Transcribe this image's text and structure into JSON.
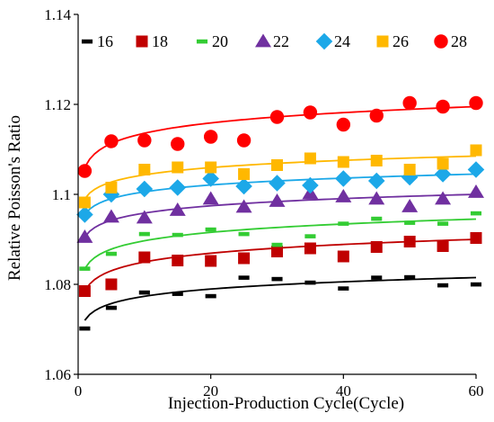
{
  "chart_data": {
    "type": "scatter",
    "title": "",
    "xlabel": "Injection-Production Cycle(Cycle)",
    "ylabel": "Relative Poisson's Ratio",
    "xlim": [
      0,
      60
    ],
    "ylim": [
      1.06,
      1.14
    ],
    "xticks": [
      0,
      20,
      40,
      60
    ],
    "yticks": [
      1.06,
      1.08,
      1.1,
      1.12,
      1.14
    ],
    "xtick_labels": [
      "0",
      "20",
      "40",
      "60"
    ],
    "ytick_labels": [
      "1.06",
      "1.08",
      "1.1",
      "1.12",
      "1.14"
    ],
    "grid": false,
    "legend_position": "top",
    "trendline": "logarithmic",
    "x": [
      1,
      5,
      10,
      15,
      20,
      25,
      30,
      35,
      40,
      45,
      50,
      55,
      60
    ],
    "series": [
      {
        "name": "16",
        "marker": "dash",
        "color": "#000000",
        "values": [
          1.0702,
          1.0748,
          1.0782,
          1.0779,
          1.0774,
          1.0815,
          1.0812,
          1.0804,
          1.0791,
          1.0815,
          1.0816,
          1.0798,
          1.08
        ],
        "fit": [
          1.072,
          1.0815
        ]
      },
      {
        "name": "18",
        "marker": "square",
        "color": "#c00000",
        "values": [
          1.0785,
          1.08,
          1.086,
          1.0853,
          1.0852,
          1.0858,
          1.0873,
          1.088,
          1.0862,
          1.0883,
          1.0895,
          1.0885,
          1.0903
        ],
        "fit": [
          1.0785,
          1.09
        ]
      },
      {
        "name": "20",
        "marker": "dash",
        "color": "#33cc33",
        "values": [
          1.0835,
          1.0868,
          1.0912,
          1.091,
          1.0922,
          1.0912,
          1.0888,
          1.0907,
          1.0935,
          1.0946,
          1.0937,
          1.0935,
          1.0958
        ],
        "fit": [
          1.0835,
          1.0945
        ]
      },
      {
        "name": "22",
        "marker": "triangle",
        "color": "#7030a0",
        "values": [
          1.0905,
          1.095,
          1.0948,
          1.0965,
          1.099,
          1.0972,
          1.0985,
          1.1002,
          1.0995,
          1.099,
          1.0973,
          1.099,
          1.1005
        ],
        "fit": [
          1.0905,
          1.1
        ]
      },
      {
        "name": "24",
        "marker": "diamond",
        "color": "#1ca8e8",
        "values": [
          1.0955,
          1.1,
          1.1012,
          1.1015,
          1.1035,
          1.1018,
          1.1025,
          1.102,
          1.1035,
          1.103,
          1.1038,
          1.1045,
          1.1055
        ],
        "fit": [
          1.0955,
          1.1045
        ]
      },
      {
        "name": "26",
        "marker": "square",
        "color": "#ffb800",
        "values": [
          1.0982,
          1.1015,
          1.1055,
          1.106,
          1.106,
          1.1045,
          1.1065,
          1.108,
          1.1072,
          1.1075,
          1.1055,
          1.1068,
          1.1098
        ],
        "fit": [
          1.099,
          1.1085
        ]
      },
      {
        "name": "28",
        "marker": "circle",
        "color": "#ff0000",
        "values": [
          1.1052,
          1.1118,
          1.112,
          1.1112,
          1.1128,
          1.112,
          1.1172,
          1.1182,
          1.1155,
          1.1175,
          1.1203,
          1.1195,
          1.1203
        ],
        "fit": [
          1.106,
          1.1195
        ]
      }
    ]
  }
}
